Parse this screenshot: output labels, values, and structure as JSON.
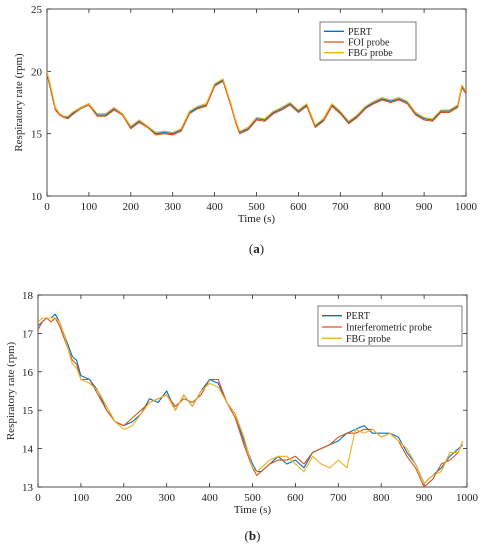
{
  "chart_data": [
    {
      "type": "line",
      "caption_label": "a",
      "xlabel": "Time (s)",
      "ylabel": "Respiratory rate (rpm)",
      "xlim": [
        0,
        1000
      ],
      "ylim": [
        10,
        25
      ],
      "xticks": [
        0,
        100,
        200,
        300,
        400,
        500,
        600,
        700,
        800,
        900,
        1000
      ],
      "yticks": [
        10,
        15,
        20,
        25
      ],
      "legend_position": "top-right",
      "series": [
        {
          "name": "PERT",
          "color": "#0072BD",
          "x": [
            0,
            10,
            20,
            30,
            40,
            50,
            60,
            80,
            100,
            120,
            140,
            160,
            180,
            200,
            220,
            240,
            260,
            280,
            300,
            320,
            340,
            360,
            380,
            400,
            420,
            440,
            450,
            460,
            480,
            500,
            520,
            540,
            560,
            580,
            600,
            620,
            640,
            660,
            680,
            700,
            720,
            740,
            760,
            780,
            800,
            820,
            840,
            860,
            880,
            900,
            920,
            940,
            960,
            980,
            990,
            1000
          ],
          "y": [
            19.9,
            18.5,
            17.0,
            16.6,
            16.4,
            16.3,
            16.6,
            17.1,
            17.4,
            16.5,
            16.5,
            17.0,
            16.6,
            15.5,
            16.0,
            15.6,
            15.0,
            15.1,
            15.0,
            15.3,
            16.7,
            17.1,
            17.3,
            18.9,
            19.3,
            17.2,
            16.0,
            15.1,
            15.4,
            16.2,
            16.1,
            16.7,
            17.0,
            17.4,
            16.8,
            17.3,
            15.6,
            16.1,
            17.3,
            16.7,
            15.9,
            16.4,
            17.1,
            17.5,
            17.8,
            17.6,
            17.8,
            17.5,
            16.6,
            16.2,
            16.1,
            16.8,
            16.8,
            17.2,
            18.8,
            18.3
          ]
        },
        {
          "name": "FOI probe",
          "color": "#D95319",
          "x": [
            0,
            10,
            20,
            30,
            40,
            50,
            60,
            80,
            100,
            120,
            140,
            160,
            180,
            200,
            220,
            240,
            260,
            280,
            300,
            320,
            340,
            360,
            380,
            400,
            420,
            440,
            450,
            460,
            480,
            500,
            520,
            540,
            560,
            580,
            600,
            620,
            640,
            660,
            680,
            700,
            720,
            740,
            760,
            780,
            800,
            820,
            840,
            860,
            880,
            900,
            920,
            940,
            960,
            980,
            990,
            1000
          ],
          "y": [
            19.8,
            18.3,
            16.9,
            16.5,
            16.3,
            16.2,
            16.5,
            17.0,
            17.3,
            16.4,
            16.4,
            16.9,
            16.5,
            15.4,
            15.9,
            15.5,
            14.9,
            15.0,
            14.9,
            15.2,
            16.6,
            17.0,
            17.2,
            18.8,
            19.2,
            17.1,
            15.9,
            15.0,
            15.3,
            16.1,
            16.0,
            16.6,
            16.9,
            17.3,
            16.7,
            17.2,
            15.5,
            16.0,
            17.2,
            16.6,
            15.8,
            16.3,
            17.0,
            17.4,
            17.7,
            17.5,
            17.7,
            17.4,
            16.5,
            16.1,
            16.0,
            16.7,
            16.7,
            17.1,
            18.7,
            18.2
          ]
        },
        {
          "name": "FBG probe",
          "color": "#EDB120",
          "x": [
            0,
            10,
            20,
            30,
            40,
            50,
            60,
            80,
            100,
            120,
            140,
            160,
            180,
            200,
            220,
            240,
            260,
            280,
            300,
            320,
            340,
            360,
            380,
            400,
            420,
            440,
            450,
            460,
            480,
            500,
            520,
            540,
            560,
            580,
            600,
            620,
            640,
            660,
            680,
            700,
            720,
            740,
            760,
            780,
            800,
            820,
            840,
            860,
            880,
            900,
            920,
            940,
            960,
            980,
            990,
            1000
          ],
          "y": [
            20.0,
            18.6,
            17.1,
            16.6,
            16.4,
            16.4,
            16.7,
            17.1,
            17.4,
            16.6,
            16.6,
            17.1,
            16.6,
            15.6,
            16.1,
            15.6,
            15.1,
            15.2,
            15.1,
            15.4,
            16.8,
            17.2,
            17.4,
            19.0,
            19.4,
            17.3,
            16.1,
            15.2,
            15.5,
            16.3,
            16.2,
            16.8,
            17.1,
            17.5,
            16.9,
            17.4,
            15.7,
            16.2,
            17.4,
            16.8,
            16.0,
            16.5,
            17.2,
            17.6,
            17.9,
            17.7,
            17.9,
            17.6,
            16.7,
            16.3,
            16.2,
            16.9,
            16.9,
            17.3,
            18.9,
            18.4
          ]
        }
      ]
    },
    {
      "type": "line",
      "caption_label": "b",
      "xlabel": "Time (s)",
      "ylabel": "Respiratory rate (rpm)",
      "xlim": [
        0,
        1000
      ],
      "ylim": [
        13,
        18
      ],
      "xticks": [
        0,
        100,
        200,
        300,
        400,
        500,
        600,
        700,
        800,
        900,
        1000
      ],
      "yticks": [
        13,
        14,
        15,
        16,
        17,
        18
      ],
      "legend_position": "top-right",
      "series": [
        {
          "name": "PERT",
          "color": "#0072BD",
          "x": [
            0,
            10,
            20,
            30,
            40,
            50,
            60,
            70,
            80,
            90,
            100,
            120,
            140,
            160,
            180,
            200,
            220,
            240,
            260,
            280,
            300,
            320,
            340,
            360,
            380,
            400,
            420,
            440,
            460,
            480,
            500,
            510,
            520,
            540,
            560,
            580,
            600,
            620,
            640,
            660,
            680,
            700,
            720,
            740,
            760,
            780,
            800,
            820,
            840,
            860,
            880,
            900,
            920,
            940,
            960,
            980,
            990
          ],
          "y": [
            17.2,
            17.3,
            17.4,
            17.4,
            17.5,
            17.3,
            17.0,
            16.7,
            16.4,
            16.3,
            15.9,
            15.8,
            15.5,
            15.0,
            14.7,
            14.6,
            14.7,
            14.9,
            15.3,
            15.2,
            15.5,
            15.0,
            15.4,
            15.1,
            15.5,
            15.8,
            15.7,
            15.2,
            14.9,
            14.2,
            13.6,
            13.4,
            13.4,
            13.6,
            13.8,
            13.6,
            13.7,
            13.5,
            13.9,
            14.0,
            14.1,
            14.2,
            14.4,
            14.5,
            14.6,
            14.4,
            14.4,
            14.4,
            14.3,
            13.9,
            13.6,
            13.1,
            13.3,
            13.5,
            13.8,
            14.0,
            14.1
          ]
        },
        {
          "name": "Interferometric probe",
          "color": "#D95319",
          "x": [
            0,
            10,
            20,
            30,
            40,
            50,
            60,
            70,
            80,
            90,
            100,
            120,
            140,
            160,
            180,
            200,
            220,
            240,
            260,
            280,
            300,
            320,
            340,
            360,
            380,
            400,
            420,
            440,
            460,
            480,
            500,
            510,
            520,
            540,
            560,
            580,
            600,
            620,
            640,
            660,
            680,
            700,
            720,
            740,
            760,
            780,
            800,
            820,
            840,
            860,
            880,
            900,
            920,
            940,
            960,
            980,
            990
          ],
          "y": [
            17.1,
            17.3,
            17.4,
            17.3,
            17.4,
            17.2,
            16.9,
            16.6,
            16.3,
            16.2,
            15.8,
            15.8,
            15.4,
            15.0,
            14.7,
            14.6,
            14.8,
            15.0,
            15.2,
            15.3,
            15.4,
            15.1,
            15.3,
            15.2,
            15.4,
            15.8,
            15.8,
            15.2,
            14.8,
            14.1,
            13.5,
            13.3,
            13.4,
            13.6,
            13.7,
            13.7,
            13.8,
            13.6,
            13.9,
            14.0,
            14.1,
            14.3,
            14.4,
            14.4,
            14.5,
            14.5,
            14.3,
            14.4,
            14.2,
            13.8,
            13.5,
            13.0,
            13.2,
            13.6,
            13.7,
            13.9,
            14.2
          ]
        },
        {
          "name": "FBG probe",
          "color": "#EDB120",
          "x": [
            0,
            10,
            20,
            30,
            40,
            50,
            60,
            70,
            80,
            90,
            100,
            120,
            140,
            160,
            180,
            200,
            220,
            240,
            260,
            280,
            300,
            320,
            340,
            360,
            380,
            400,
            420,
            440,
            460,
            480,
            500,
            510,
            520,
            540,
            560,
            580,
            600,
            620,
            640,
            660,
            680,
            700,
            720,
            740,
            760,
            780,
            800,
            820,
            840,
            860,
            880,
            900,
            920,
            940,
            960,
            980,
            990
          ],
          "y": [
            17.3,
            17.4,
            17.4,
            17.4,
            17.4,
            17.3,
            17.0,
            16.6,
            16.2,
            16.1,
            15.8,
            15.7,
            15.5,
            15.1,
            14.7,
            14.5,
            14.6,
            14.9,
            15.2,
            15.3,
            15.4,
            15.0,
            15.4,
            15.1,
            15.5,
            15.7,
            15.6,
            15.2,
            14.9,
            14.3,
            13.5,
            13.4,
            13.5,
            13.7,
            13.8,
            13.8,
            13.6,
            13.4,
            13.8,
            13.6,
            13.5,
            13.7,
            13.5,
            14.5,
            14.4,
            14.5,
            14.3,
            14.4,
            14.2,
            14.0,
            13.6,
            13.1,
            13.3,
            13.4,
            13.9,
            13.9,
            14.2
          ]
        }
      ]
    }
  ]
}
